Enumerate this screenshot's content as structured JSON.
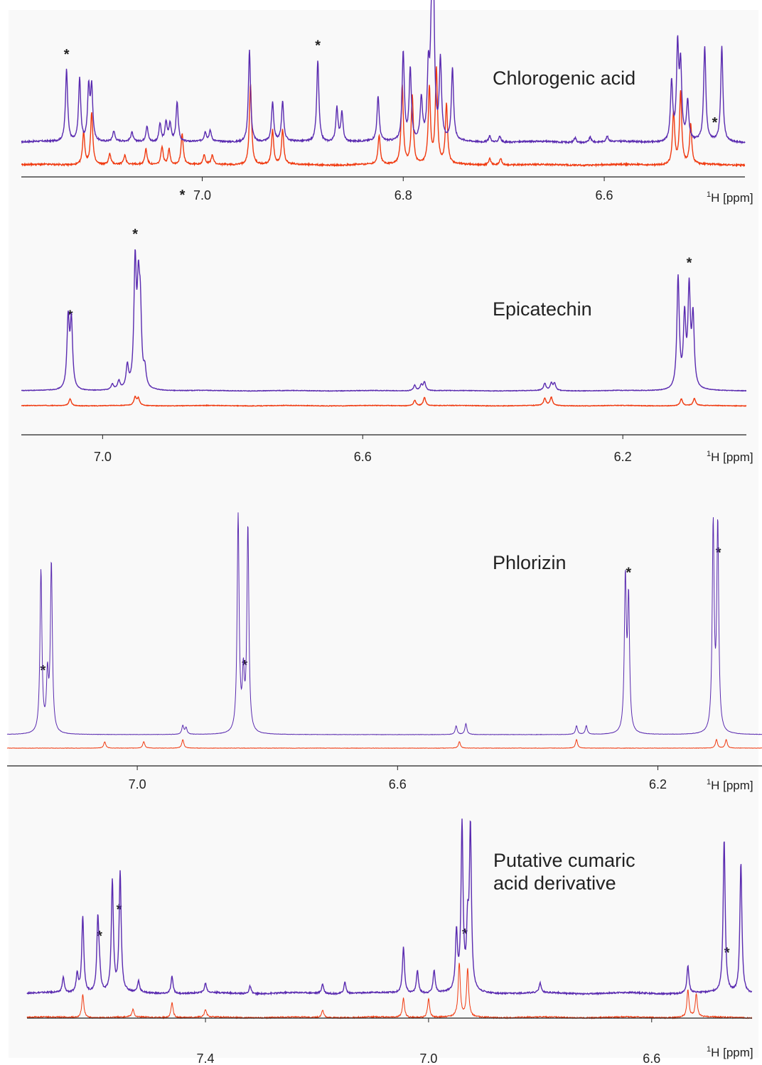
{
  "figure": {
    "x_unit_label": "H [ppm]",
    "x_unit_superscript": "1",
    "colors": {
      "background": "#f9f9f9",
      "upper_trace": "#5a2bb0",
      "lower_trace": "#f03a10",
      "axis": "#222222"
    }
  },
  "chart_data": [
    {
      "type": "line",
      "title": "Chlorogenic acid",
      "xlabel": "1H [ppm]",
      "x_reversed": true,
      "xlim": [
        7.18,
        6.46
      ],
      "xticks": [
        7.0,
        6.8,
        6.6
      ],
      "xtick_labels": [
        "7.0",
        "6.8",
        "6.6"
      ],
      "axis_marks": [
        {
          "x": 7.0,
          "label": "*"
        }
      ],
      "starred_peaks": [
        7.135,
        6.885,
        6.49
      ],
      "series": [
        {
          "color": "#5a2bb0",
          "peaks": [
            [
              7.135,
              0.55
            ],
            [
              7.122,
              0.48
            ],
            [
              7.113,
              0.4
            ],
            [
              7.11,
              0.4
            ],
            [
              7.088,
              0.08
            ],
            [
              7.07,
              0.07
            ],
            [
              7.055,
              0.12
            ],
            [
              7.042,
              0.14
            ],
            [
              7.036,
              0.15
            ],
            [
              7.032,
              0.14
            ],
            [
              7.025,
              0.3
            ],
            [
              6.997,
              0.07
            ],
            [
              6.992,
              0.08
            ],
            [
              6.953,
              0.7
            ],
            [
              6.93,
              0.3
            ],
            [
              6.92,
              0.3
            ],
            [
              6.885,
              0.62
            ],
            [
              6.866,
              0.26
            ],
            [
              6.861,
              0.22
            ],
            [
              6.825,
              0.34
            ],
            [
              6.8,
              0.68
            ],
            [
              6.793,
              0.55
            ],
            [
              6.782,
              0.32
            ],
            [
              6.775,
              0.5
            ],
            [
              6.772,
              0.68
            ],
            [
              6.77,
              1.1
            ],
            [
              6.763,
              0.6
            ],
            [
              6.751,
              0.55
            ],
            [
              6.714,
              0.05
            ],
            [
              6.704,
              0.05
            ],
            [
              6.629,
              0.04
            ],
            [
              6.614,
              0.04
            ],
            [
              6.597,
              0.04
            ],
            [
              6.533,
              0.45
            ],
            [
              6.527,
              0.7
            ],
            [
              6.524,
              0.55
            ],
            [
              6.517,
              0.3
            ],
            [
              6.5,
              0.72
            ],
            [
              6.483,
              0.72
            ]
          ]
        },
        {
          "color": "#f03a10",
          "peaks": [
            [
              7.118,
              0.25
            ],
            [
              7.11,
              0.4
            ],
            [
              7.092,
              0.08
            ],
            [
              7.077,
              0.07
            ],
            [
              7.056,
              0.12
            ],
            [
              7.04,
              0.14
            ],
            [
              7.033,
              0.12
            ],
            [
              7.02,
              0.24
            ],
            [
              6.998,
              0.07
            ],
            [
              6.99,
              0.07
            ],
            [
              6.952,
              0.62
            ],
            [
              6.93,
              0.26
            ],
            [
              6.92,
              0.26
            ],
            [
              6.824,
              0.22
            ],
            [
              6.801,
              0.6
            ],
            [
              6.791,
              0.52
            ],
            [
              6.774,
              0.58
            ],
            [
              6.767,
              0.72
            ],
            [
              6.757,
              0.45
            ],
            [
              6.714,
              0.05
            ],
            [
              6.703,
              0.05
            ],
            [
              6.531,
              0.4
            ],
            [
              6.524,
              0.55
            ],
            [
              6.514,
              0.3
            ]
          ]
        }
      ]
    },
    {
      "type": "line",
      "title": "Epicatechin",
      "xlabel": "1H [ppm]",
      "x_reversed": true,
      "xlim": [
        7.125,
        6.01
      ],
      "xticks": [
        7.0,
        6.6,
        6.2
      ],
      "xtick_labels": [
        "7.0",
        "6.6",
        "6.2"
      ],
      "starred_peaks": [
        7.05,
        6.95,
        6.098
      ],
      "series": [
        {
          "color": "#5a2bb0",
          "peaks": [
            [
              7.053,
              0.5
            ],
            [
              7.048,
              0.48
            ],
            [
              6.95,
              0.88
            ],
            [
              6.945,
              0.62
            ],
            [
              6.942,
              0.5
            ],
            [
              6.935,
              0.12
            ],
            [
              6.962,
              0.16
            ],
            [
              6.975,
              0.06
            ],
            [
              6.985,
              0.04
            ],
            [
              6.52,
              0.04
            ],
            [
              6.51,
              0.04
            ],
            [
              6.505,
              0.06
            ],
            [
              6.32,
              0.05
            ],
            [
              6.31,
              0.05
            ],
            [
              6.305,
              0.05
            ],
            [
              6.115,
              0.8
            ],
            [
              6.105,
              0.5
            ],
            [
              6.098,
              0.7
            ],
            [
              6.092,
              0.5
            ]
          ]
        },
        {
          "color": "#f03a10",
          "peaks": [
            [
              7.05,
              0.05
            ],
            [
              6.95,
              0.06
            ],
            [
              6.945,
              0.05
            ],
            [
              6.52,
              0.04
            ],
            [
              6.505,
              0.06
            ],
            [
              6.32,
              0.05
            ],
            [
              6.31,
              0.06
            ],
            [
              6.11,
              0.05
            ],
            [
              6.09,
              0.05
            ]
          ]
        }
      ]
    },
    {
      "type": "line",
      "title": "Phlorizin",
      "xlabel": "1H [ppm]",
      "x_reversed": true,
      "xlim": [
        7.2,
        6.04
      ],
      "xticks": [
        7.0,
        6.6,
        6.2
      ],
      "xtick_labels": [
        "7.0",
        "6.6",
        "6.2"
      ],
      "starred_peaks": [
        7.145,
        6.835,
        6.245,
        6.107
      ],
      "series": [
        {
          "color": "#5a2bb0",
          "peaks": [
            [
              7.148,
              0.75
            ],
            [
              7.132,
              0.78
            ],
            [
              7.138,
              0.25
            ],
            [
              6.845,
              1.0
            ],
            [
              6.83,
              0.95
            ],
            [
              6.837,
              0.25
            ],
            [
              6.25,
              0.7
            ],
            [
              6.245,
              0.6
            ],
            [
              6.115,
              0.95
            ],
            [
              6.108,
              0.95
            ],
            [
              6.93,
              0.04
            ],
            [
              6.925,
              0.03
            ],
            [
              6.51,
              0.04
            ],
            [
              6.495,
              0.05
            ],
            [
              6.325,
              0.04
            ],
            [
              6.31,
              0.04
            ]
          ]
        },
        {
          "color": "#f03a10",
          "peaks": [
            [
              7.05,
              0.03
            ],
            [
              6.99,
              0.03
            ],
            [
              6.93,
              0.04
            ],
            [
              6.505,
              0.03
            ],
            [
              6.325,
              0.04
            ],
            [
              6.11,
              0.04
            ],
            [
              6.095,
              0.04
            ]
          ]
        }
      ]
    },
    {
      "type": "line",
      "title": "Putative cumaric acid derivative",
      "title_lines": [
        "Putative cumaric",
        "acid derivative"
      ],
      "xlabel": "1H [ppm]",
      "x_reversed": true,
      "xlim": [
        7.72,
        6.42
      ],
      "xticks": [
        7.4,
        7.0,
        6.6
      ],
      "xtick_labels": [
        "7.4",
        "7.0",
        "6.6"
      ],
      "starred_peaks": [
        7.59,
        7.555,
        6.935,
        6.465
      ],
      "series": [
        {
          "color": "#5a2bb0",
          "peaks": [
            [
              7.62,
              0.4
            ],
            [
              7.593,
              0.38
            ],
            [
              7.567,
              0.58
            ],
            [
              7.553,
              0.62
            ],
            [
              7.63,
              0.1
            ],
            [
              7.655,
              0.08
            ],
            [
              7.59,
              0.08
            ],
            [
              7.52,
              0.06
            ],
            [
              7.46,
              0.09
            ],
            [
              7.4,
              0.05
            ],
            [
              7.32,
              0.04
            ],
            [
              7.19,
              0.05
            ],
            [
              7.15,
              0.06
            ],
            [
              7.045,
              0.24
            ],
            [
              7.02,
              0.12
            ],
            [
              6.99,
              0.12
            ],
            [
              6.94,
              0.86
            ],
            [
              6.925,
              0.84
            ],
            [
              6.95,
              0.3
            ],
            [
              6.93,
              0.3
            ],
            [
              6.8,
              0.05
            ],
            [
              6.535,
              0.14
            ],
            [
              6.47,
              0.8
            ],
            [
              6.44,
              0.68
            ]
          ]
        },
        {
          "color": "#f03a10",
          "peaks": [
            [
              7.62,
              0.12
            ],
            [
              7.53,
              0.04
            ],
            [
              7.46,
              0.08
            ],
            [
              7.4,
              0.04
            ],
            [
              7.19,
              0.04
            ],
            [
              7.045,
              0.1
            ],
            [
              7.0,
              0.1
            ],
            [
              6.945,
              0.28
            ],
            [
              6.93,
              0.25
            ],
            [
              6.535,
              0.14
            ],
            [
              6.52,
              0.12
            ]
          ]
        }
      ]
    }
  ]
}
